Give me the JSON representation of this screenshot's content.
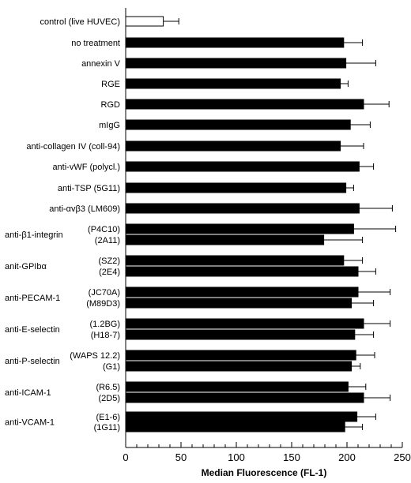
{
  "chart_data": {
    "type": "bar",
    "orientation": "horizontal",
    "xlabel": "Median Fluorescence (FL-1)",
    "xlim": [
      0,
      250
    ],
    "xticks": [
      0,
      50,
      100,
      150,
      200,
      250
    ],
    "grid": false,
    "legend": "none",
    "bar_color": "#000000",
    "control_bar_color": "#ffffff",
    "groups": [
      {
        "label": "control (live HUVEC)",
        "bars": [
          {
            "sublabel": "",
            "value": 34,
            "error": 14,
            "hollow": true
          }
        ]
      },
      {
        "label": "no treatment",
        "bars": [
          {
            "sublabel": "",
            "value": 197,
            "error": 17
          }
        ]
      },
      {
        "label": "annexin V",
        "bars": [
          {
            "sublabel": "",
            "value": 199,
            "error": 27
          }
        ]
      },
      {
        "label": "RGE",
        "bars": [
          {
            "sublabel": "",
            "value": 194,
            "error": 7
          }
        ]
      },
      {
        "label": "RGD",
        "bars": [
          {
            "sublabel": "",
            "value": 215,
            "error": 23
          }
        ]
      },
      {
        "label": "mIgG",
        "bars": [
          {
            "sublabel": "",
            "value": 203,
            "error": 18
          }
        ]
      },
      {
        "label": "anti-collagen IV (coll-94)",
        "bars": [
          {
            "sublabel": "",
            "value": 194,
            "error": 21
          }
        ]
      },
      {
        "label": "anti-vWF (polycl.)",
        "bars": [
          {
            "sublabel": "",
            "value": 211,
            "error": 13
          }
        ]
      },
      {
        "label": "anti-TSP (5G11)",
        "bars": [
          {
            "sublabel": "",
            "value": 199,
            "error": 7
          }
        ]
      },
      {
        "label": "anti-αvβ3 (LM609)",
        "bars": [
          {
            "sublabel": "",
            "value": 211,
            "error": 30
          }
        ]
      },
      {
        "label": "anti-β1-integrin",
        "bars": [
          {
            "sublabel": "(P4C10)",
            "value": 206,
            "error": 38
          },
          {
            "sublabel": "(2A11)",
            "value": 179,
            "error": 35
          }
        ]
      },
      {
        "label": "anit-GPIbα",
        "bars": [
          {
            "sublabel": "(SZ2)",
            "value": 197,
            "error": 17
          },
          {
            "sublabel": "(2E4)",
            "value": 210,
            "error": 16
          }
        ]
      },
      {
        "label": "anti-PECAM-1",
        "bars": [
          {
            "sublabel": "(JC70A)",
            "value": 210,
            "error": 29
          },
          {
            "sublabel": "(M89D3)",
            "value": 204,
            "error": 20
          }
        ]
      },
      {
        "label": "anti-E-selectin",
        "bars": [
          {
            "sublabel": "(1.2BG)",
            "value": 215,
            "error": 24
          },
          {
            "sublabel": "(H18-7)",
            "value": 207,
            "error": 17
          }
        ]
      },
      {
        "label": "anti-P-selectin",
        "bars": [
          {
            "sublabel": "(WAPS 12.2)",
            "value": 208,
            "error": 17
          },
          {
            "sublabel": "(G1)",
            "value": 204,
            "error": 8
          }
        ]
      },
      {
        "label": "anti-ICAM-1",
        "bars": [
          {
            "sublabel": "(R6.5)",
            "value": 201,
            "error": 16
          },
          {
            "sublabel": "(2D5)",
            "value": 215,
            "error": 24
          }
        ]
      },
      {
        "label": "anti-VCAM-1",
        "bars": [
          {
            "sublabel": "(E1-6)",
            "value": 209,
            "error": 17
          },
          {
            "sublabel": "(1G11)",
            "value": 198,
            "error": 16
          }
        ]
      }
    ]
  }
}
